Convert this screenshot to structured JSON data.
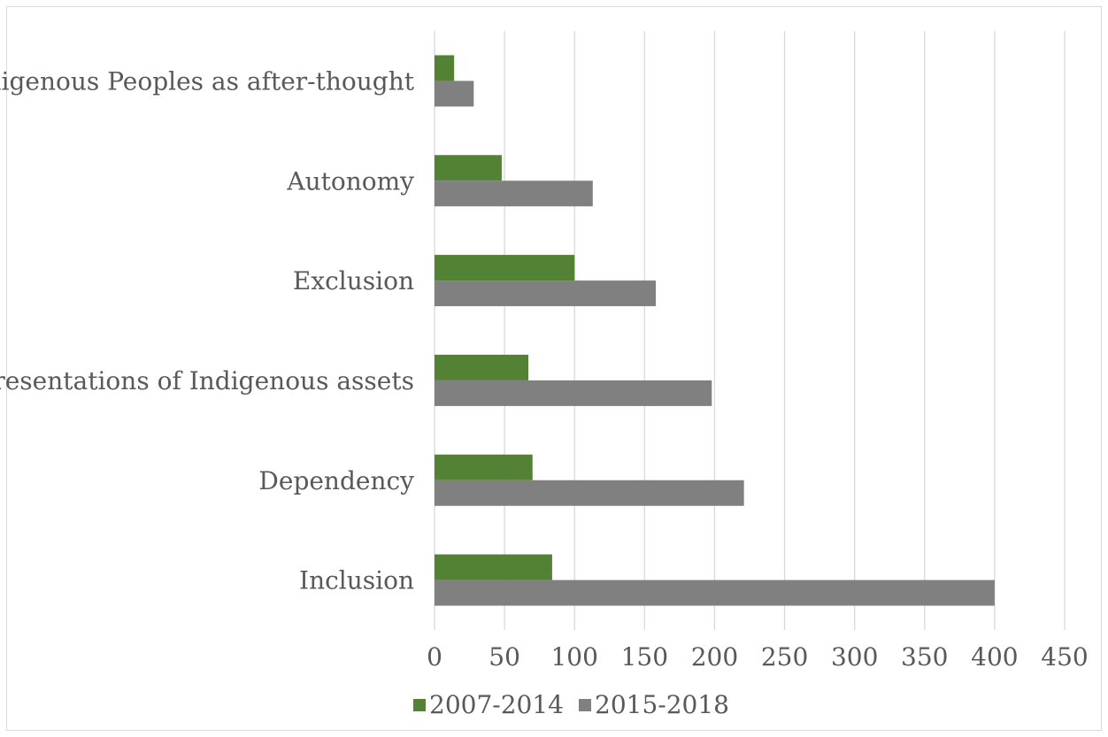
{
  "chart_data": {
    "type": "bar",
    "orientation": "horizontal",
    "categories": [
      "Indigenous Peoples as after-thought",
      "Autonomy",
      "Exclusion",
      "Representations of Indigenous assets",
      "Dependency",
      "Inclusion"
    ],
    "series": [
      {
        "name": "2007-2014",
        "color": "#548235",
        "values": [
          14,
          48,
          100,
          67,
          70,
          84
        ]
      },
      {
        "name": "2015-2018",
        "color": "#808080",
        "values": [
          28,
          113,
          158,
          198,
          221,
          400
        ]
      }
    ],
    "xlim": [
      0,
      450
    ],
    "xticks": [
      "0",
      "50",
      "100",
      "150",
      "200",
      "250",
      "300",
      "350",
      "400",
      "450"
    ],
    "grid": "vertical",
    "legend_position": "bottom"
  }
}
